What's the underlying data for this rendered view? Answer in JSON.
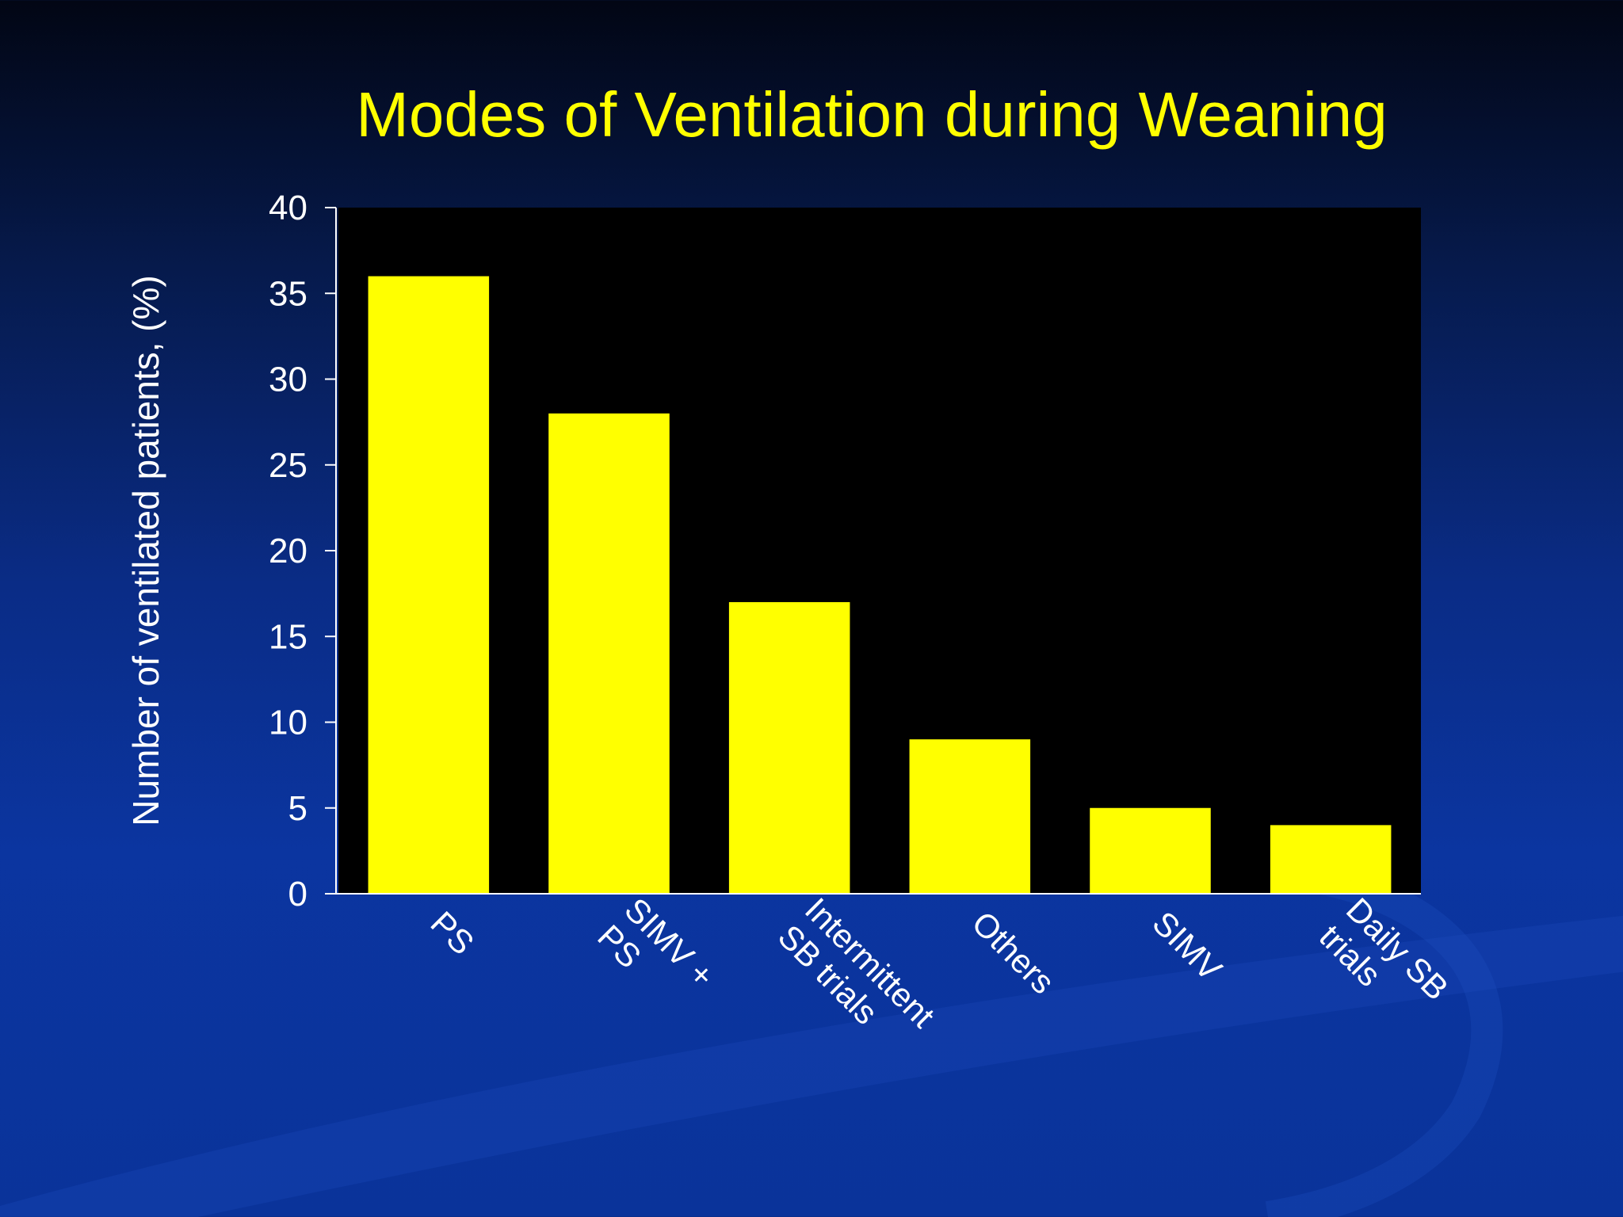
{
  "slide": {
    "title": "Modes of Ventilation during Weaning"
  },
  "colors": {
    "background_top": "#020614",
    "background_bottom": "#0a339a",
    "plot_area": "#000000",
    "bar": "#ffff00",
    "title": "#ffff00",
    "axis_text": "#ffffff"
  },
  "chart_data": {
    "type": "bar",
    "title": "Modes of Ventilation during Weaning",
    "xlabel": "",
    "ylabel": "Number of ventilated patients, (%)",
    "categories": [
      [
        "PS"
      ],
      [
        "SIMV +",
        "PS"
      ],
      [
        "Intermittent",
        "SB trials"
      ],
      [
        "Others"
      ],
      [
        "SIMV"
      ],
      [
        "Daily SB",
        "trials"
      ]
    ],
    "values": [
      36,
      28,
      17,
      9,
      5,
      4
    ],
    "ylim": [
      0,
      40
    ],
    "yticks": [
      0,
      5,
      10,
      15,
      20,
      25,
      30,
      35,
      40
    ],
    "grid": false,
    "legend": "none"
  }
}
